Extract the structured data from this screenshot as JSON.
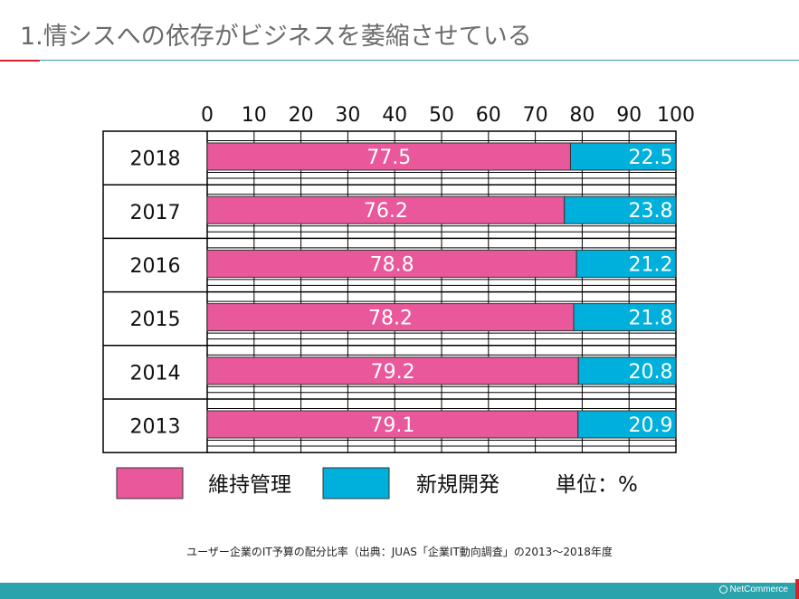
{
  "slide": {
    "title": "1.情シスへの依存がビジネスを萎縮させている",
    "caption": "ユーザー企業のIT予算の配分比率（出典：JUAS「企業IT動向調査」の2013～2018年度",
    "brand": "NetCommerce"
  },
  "colors": {
    "maintenance": "#e8589a",
    "new_dev": "#00b0dc",
    "title_rule": "#d9202f",
    "footer": "#2aa3ad"
  },
  "chart_data": {
    "type": "bar",
    "orientation": "horizontal",
    "stacked": true,
    "categories": [
      "2018",
      "2017",
      "2016",
      "2015",
      "2014",
      "2013"
    ],
    "series": [
      {
        "name": "維持管理",
        "values": [
          77.5,
          76.2,
          78.8,
          78.2,
          79.2,
          79.1
        ]
      },
      {
        "name": "新規開発",
        "values": [
          22.5,
          23.8,
          21.2,
          21.8,
          20.8,
          20.9
        ]
      }
    ],
    "value_labels": [
      [
        "77.5",
        "76.2",
        "78.8",
        "78.2",
        "79.2",
        "79.1"
      ],
      [
        "22.5",
        "23.8",
        "21.2",
        "21.8",
        "20.8",
        "20.9"
      ]
    ],
    "axis_ticks": [
      "0",
      "10",
      "20",
      "30",
      "40",
      "50",
      "60",
      "70",
      "80",
      "90",
      "100"
    ],
    "xlim": [
      0,
      100
    ],
    "unit_label": "単位：%",
    "legend_position": "bottom",
    "grid": true
  }
}
